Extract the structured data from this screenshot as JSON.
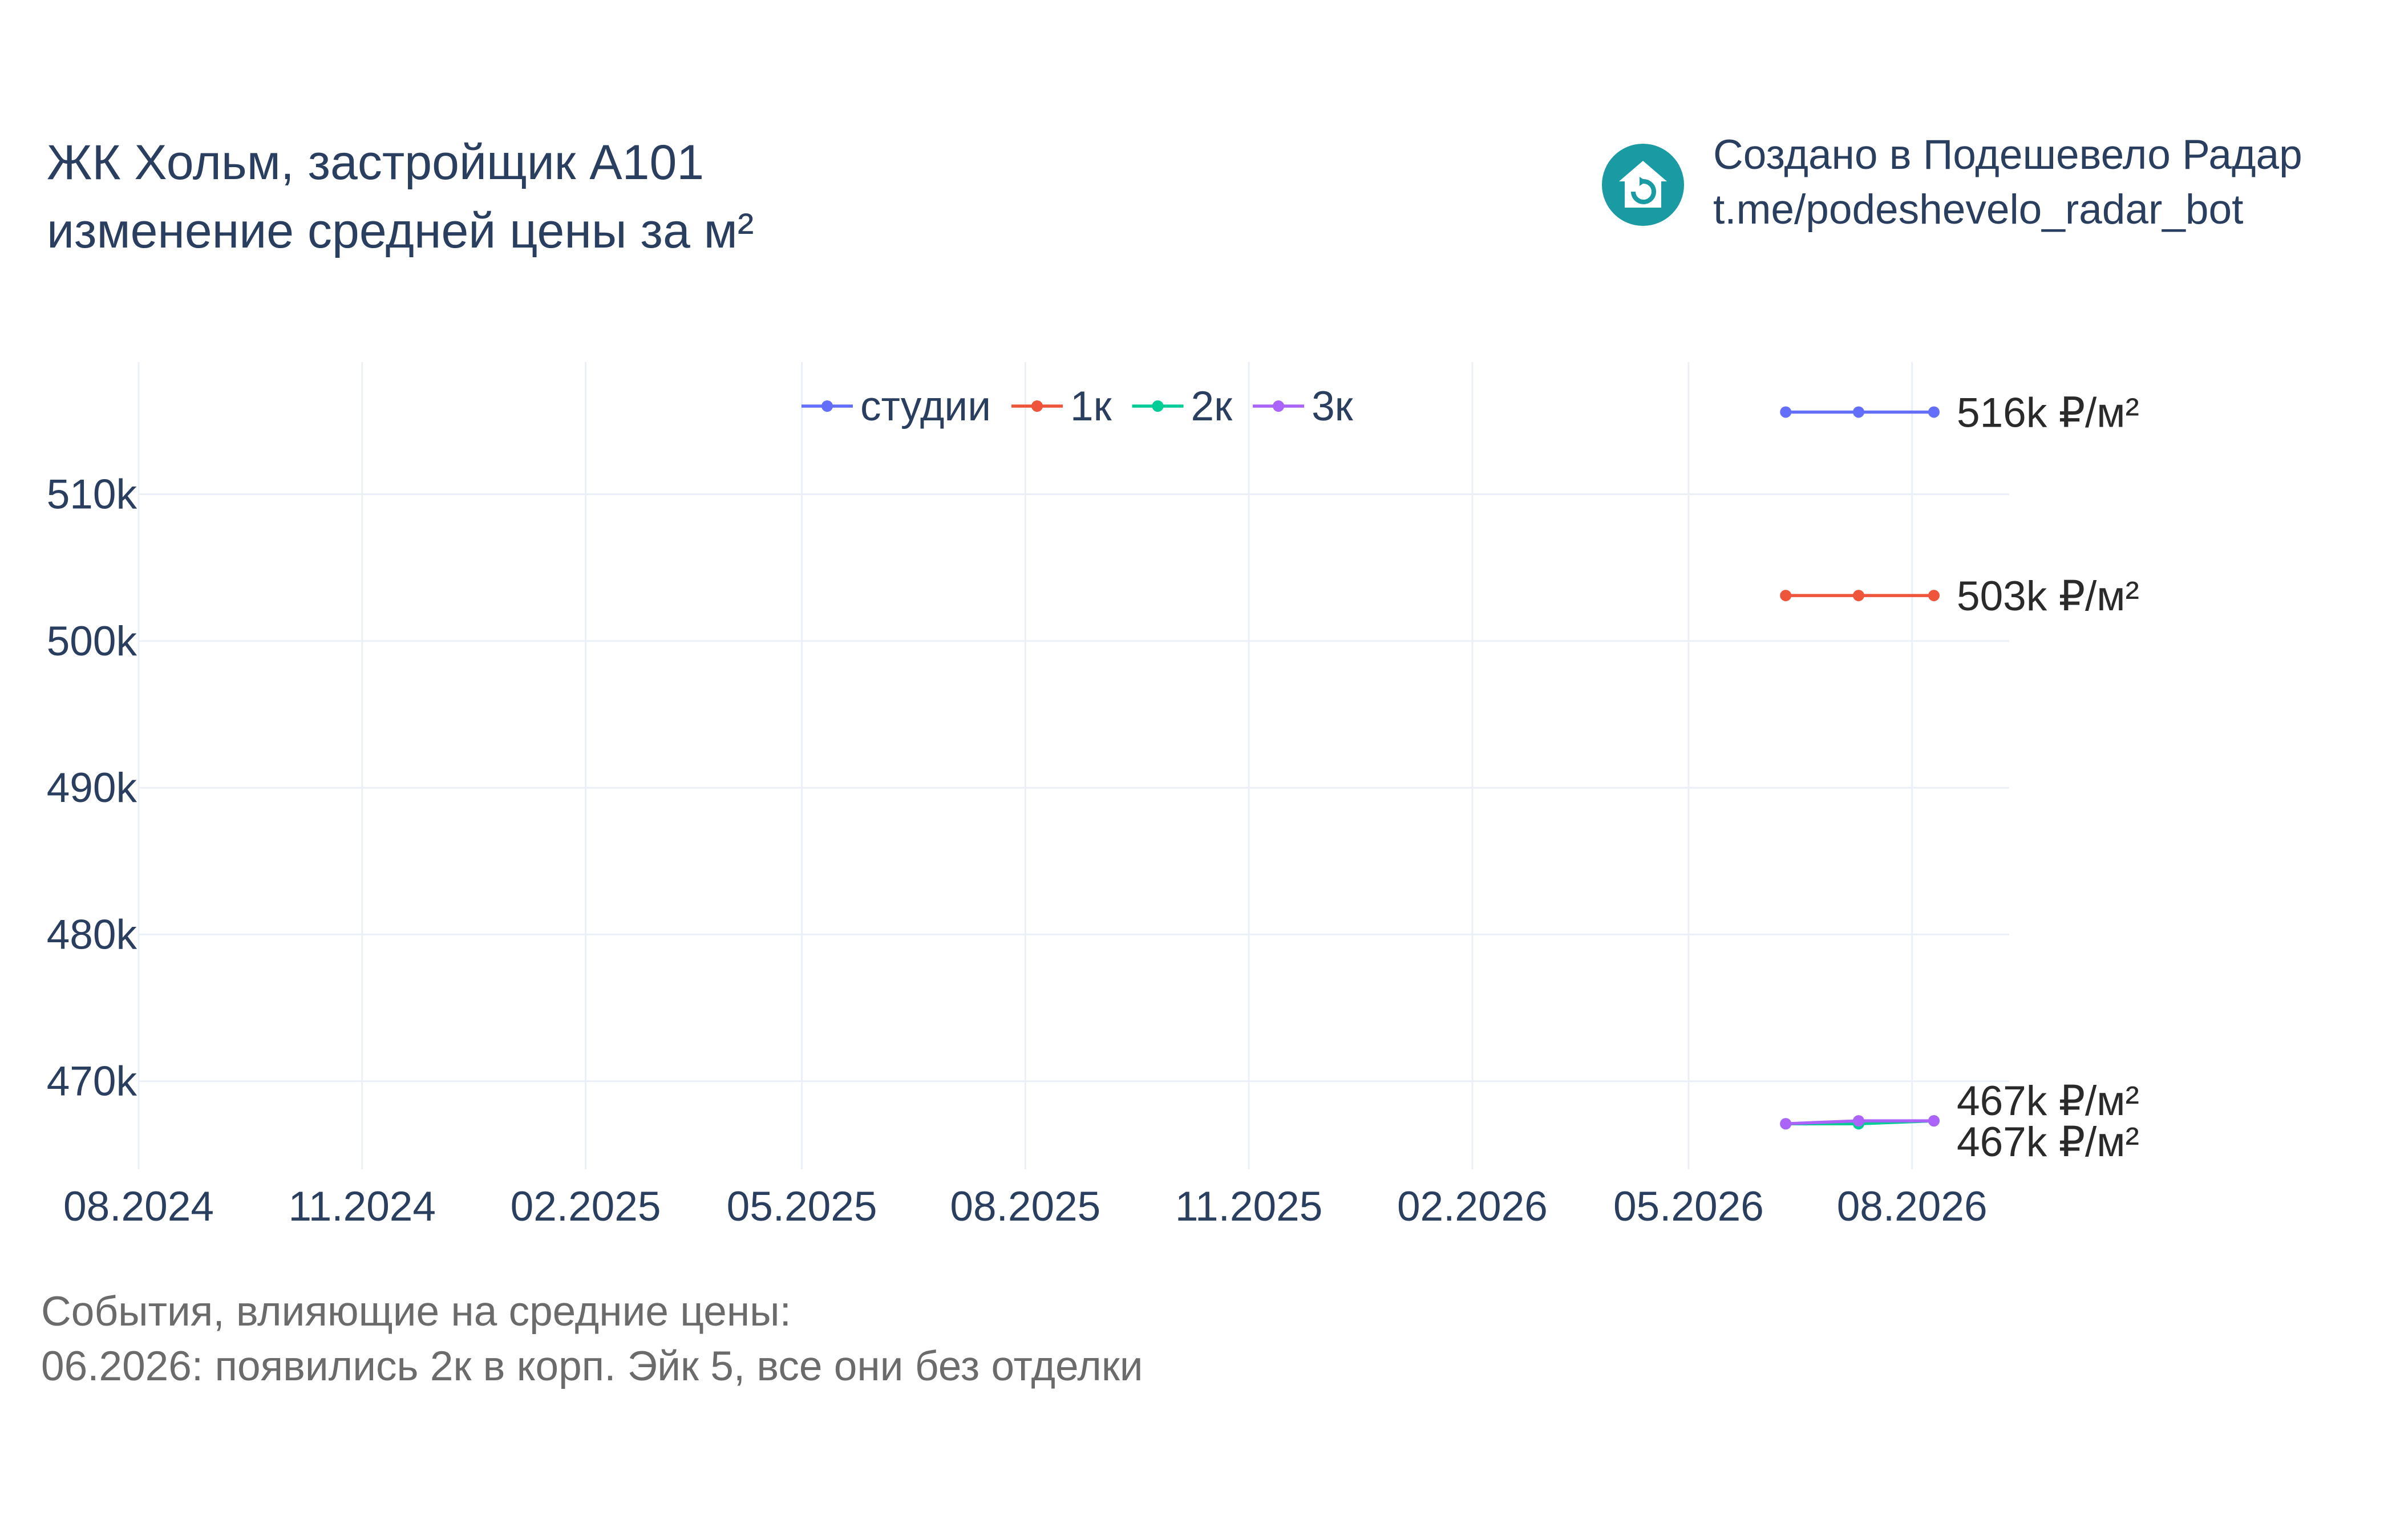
{
  "header": {
    "title_line1": "ЖК Хольм, застройщик А101",
    "title_line2": "изменение средней цены за м²"
  },
  "branding": {
    "line1": "Создано в Подешевело Радар",
    "line2": "t.me/podeshevelo_radar_bot",
    "logo_icon": "house-refresh-icon",
    "logo_color": "#1a9aa3"
  },
  "events": {
    "heading": "События, влияющие на средние цены:",
    "items": [
      "06.2026: появились 2к в корп. Эйк 5, все они без отделки"
    ]
  },
  "chart_data": {
    "type": "line",
    "x_axis": {
      "type": "date",
      "tick_labels": [
        "08.2024",
        "11.2024",
        "02.2025",
        "05.2025",
        "08.2025",
        "11.2025",
        "02.2026",
        "05.2026",
        "08.2026"
      ],
      "tick_dates": [
        "2024-08-01",
        "2024-11-01",
        "2025-02-01",
        "2025-05-01",
        "2025-08-01",
        "2025-11-01",
        "2026-02-01",
        "2026-05-01",
        "2026-08-01"
      ],
      "range": [
        "2024-08-01",
        "2026-09-10"
      ]
    },
    "y_axis": {
      "tick_values": [
        470000,
        480000,
        490000,
        500000,
        510000
      ],
      "tick_labels": [
        "470k",
        "480k",
        "490k",
        "500k",
        "510k"
      ],
      "range": [
        464000,
        519000
      ]
    },
    "grid": true,
    "legend": {
      "placement": "top-center",
      "orientation": "horizontal"
    },
    "series": [
      {
        "name": "студии",
        "color": "#636efa",
        "x": [
          "2026-06-10",
          "2026-07-10",
          "2026-08-10"
        ],
        "y": [
          515600,
          515600,
          515600
        ],
        "end_label": "516k ₽/м²"
      },
      {
        "name": "1к",
        "color": "#ef553b",
        "x": [
          "2026-06-10",
          "2026-07-10",
          "2026-08-10"
        ],
        "y": [
          503100,
          503100,
          503100
        ],
        "end_label": "503k ₽/м²"
      },
      {
        "name": "2к",
        "color": "#00cc96",
        "x": [
          "2026-06-10",
          "2026-07-10",
          "2026-08-10"
        ],
        "y": [
          467100,
          467100,
          467300
        ],
        "end_label": "467k ₽/м²"
      },
      {
        "name": "3к",
        "color": "#ab63fa",
        "x": [
          "2026-06-10",
          "2026-07-10",
          "2026-08-10"
        ],
        "y": [
          467100,
          467300,
          467300
        ],
        "end_label": "467k ₽/м²"
      }
    ]
  }
}
